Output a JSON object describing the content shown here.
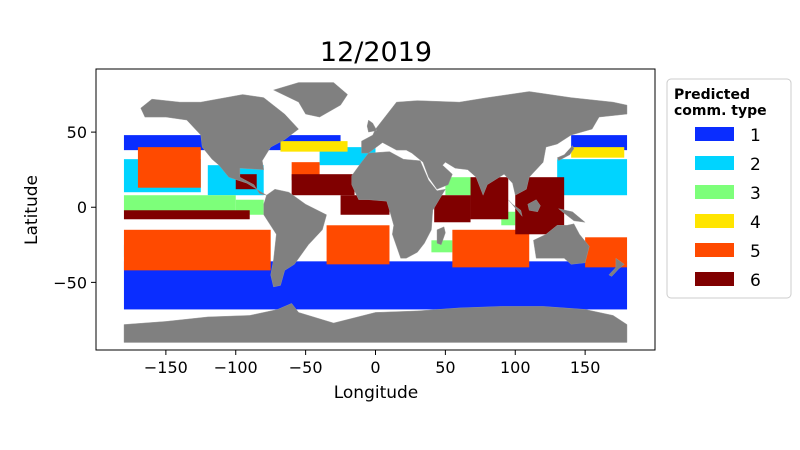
{
  "chart_data": {
    "type": "scatter",
    "title": "12/2019",
    "xlabel": "Longitude",
    "ylabel": "Latitude",
    "xlim": [
      -200,
      200
    ],
    "ylim": [
      -95,
      92
    ],
    "xticks": [
      -150,
      -100,
      -50,
      0,
      50,
      100,
      150
    ],
    "yticks": [
      -50,
      0,
      50
    ],
    "grid": false,
    "legend": {
      "title": "Predicted\ncomm. type",
      "placement": "right-outside-top",
      "entries": [
        {
          "label": "1",
          "color": "#0a2dff"
        },
        {
          "label": "2",
          "color": "#00d4ff"
        },
        {
          "label": "3",
          "color": "#7dff7a"
        },
        {
          "label": "4",
          "color": "#ffe500"
        },
        {
          "label": "5",
          "color": "#ff4a00"
        },
        {
          "label": "6",
          "color": "#800000"
        }
      ]
    },
    "land_color": "#808080",
    "bands": [
      {
        "type": "1",
        "lon": [
          -180,
          180
        ],
        "lat": [
          -68,
          -36
        ]
      },
      {
        "type": "1",
        "lon": [
          -180,
          -25
        ],
        "lat": [
          38,
          48
        ]
      },
      {
        "type": "1",
        "lon": [
          140,
          180
        ],
        "lat": [
          38,
          48
        ]
      },
      {
        "type": "2",
        "lon": [
          -180,
          -125
        ],
        "lat": [
          -33,
          -25
        ]
      },
      {
        "type": "2",
        "lon": [
          -180,
          -125
        ],
        "lat": [
          10,
          32
        ]
      },
      {
        "type": "2",
        "lon": [
          -120,
          -80
        ],
        "lat": [
          8,
          28
        ]
      },
      {
        "type": "2",
        "lon": [
          130,
          180
        ],
        "lat": [
          8,
          32
        ]
      },
      {
        "type": "2",
        "lon": [
          -40,
          0
        ],
        "lat": [
          28,
          40
        ]
      },
      {
        "type": "3",
        "lon": [
          -180,
          -100
        ],
        "lat": [
          -3,
          8
        ]
      },
      {
        "type": "3",
        "lon": [
          -100,
          -80
        ],
        "lat": [
          -5,
          5
        ]
      },
      {
        "type": "3",
        "lon": [
          50,
          68
        ],
        "lat": [
          8,
          20
        ]
      },
      {
        "type": "3",
        "lon": [
          90,
          100
        ],
        "lat": [
          -12,
          -3
        ]
      },
      {
        "type": "3",
        "lon": [
          40,
          55
        ],
        "lat": [
          -30,
          -22
        ]
      },
      {
        "type": "4",
        "lon": [
          -68,
          -20
        ],
        "lat": [
          37,
          44
        ]
      },
      {
        "type": "4",
        "lon": [
          140,
          178
        ],
        "lat": [
          33,
          40
        ]
      },
      {
        "type": "5",
        "lon": [
          -170,
          -125
        ],
        "lat": [
          13,
          40
        ]
      },
      {
        "type": "5",
        "lon": [
          -180,
          -75
        ],
        "lat": [
          -42,
          -15
        ]
      },
      {
        "type": "5",
        "lon": [
          -35,
          10
        ],
        "lat": [
          -38,
          -12
        ]
      },
      {
        "type": "5",
        "lon": [
          55,
          110
        ],
        "lat": [
          -40,
          -15
        ]
      },
      {
        "type": "5",
        "lon": [
          150,
          180
        ],
        "lat": [
          -40,
          -20
        ]
      },
      {
        "type": "5",
        "lon": [
          -60,
          -40
        ],
        "lat": [
          18,
          30
        ]
      },
      {
        "type": "6",
        "lon": [
          -180,
          -90
        ],
        "lat": [
          -8,
          -2
        ]
      },
      {
        "type": "6",
        "lon": [
          -60,
          -15
        ],
        "lat": [
          8,
          22
        ]
      },
      {
        "type": "6",
        "lon": [
          -25,
          10
        ],
        "lat": [
          -5,
          8
        ]
      },
      {
        "type": "6",
        "lon": [
          42,
          68
        ],
        "lat": [
          -10,
          8
        ]
      },
      {
        "type": "6",
        "lon": [
          68,
          95
        ],
        "lat": [
          -8,
          20
        ]
      },
      {
        "type": "6",
        "lon": [
          100,
          135
        ],
        "lat": [
          -18,
          20
        ]
      },
      {
        "type": "6",
        "lon": [
          -100,
          -85
        ],
        "lat": [
          12,
          22
        ]
      }
    ],
    "land_polygons": [
      {
        "name": "north-america",
        "points": [
          [
            -168,
            66
          ],
          [
            -160,
            72
          ],
          [
            -140,
            70
          ],
          [
            -125,
            70
          ],
          [
            -95,
            75
          ],
          [
            -80,
            73
          ],
          [
            -65,
            62
          ],
          [
            -55,
            52
          ],
          [
            -65,
            45
          ],
          [
            -75,
            40
          ],
          [
            -81,
            31
          ],
          [
            -80,
            25
          ],
          [
            -97,
            26
          ],
          [
            -97,
            20
          ],
          [
            -87,
            15
          ],
          [
            -83,
            9
          ],
          [
            -78,
            8
          ],
          [
            -92,
            16
          ],
          [
            -105,
            20
          ],
          [
            -112,
            28
          ],
          [
            -117,
            32
          ],
          [
            -124,
            40
          ],
          [
            -125,
            48
          ],
          [
            -135,
            58
          ],
          [
            -150,
            60
          ],
          [
            -165,
            60
          ],
          [
            -168,
            66
          ]
        ]
      },
      {
        "name": "greenland",
        "points": [
          [
            -73,
            78
          ],
          [
            -55,
            83
          ],
          [
            -30,
            83
          ],
          [
            -20,
            75
          ],
          [
            -25,
            68
          ],
          [
            -40,
            60
          ],
          [
            -50,
            62
          ],
          [
            -55,
            70
          ],
          [
            -73,
            78
          ]
        ]
      },
      {
        "name": "south-america",
        "points": [
          [
            -78,
            8
          ],
          [
            -72,
            12
          ],
          [
            -62,
            10
          ],
          [
            -50,
            2
          ],
          [
            -35,
            -5
          ],
          [
            -38,
            -15
          ],
          [
            -48,
            -25
          ],
          [
            -58,
            -38
          ],
          [
            -65,
            -42
          ],
          [
            -68,
            -52
          ],
          [
            -73,
            -53
          ],
          [
            -75,
            -45
          ],
          [
            -73,
            -35
          ],
          [
            -71,
            -18
          ],
          [
            -80,
            -5
          ],
          [
            -80,
            2
          ],
          [
            -78,
            8
          ]
        ]
      },
      {
        "name": "europe-asia",
        "points": [
          [
            -10,
            36
          ],
          [
            -10,
            44
          ],
          [
            -2,
            48
          ],
          [
            0,
            52
          ],
          [
            5,
            58
          ],
          [
            15,
            70
          ],
          [
            30,
            71
          ],
          [
            60,
            70
          ],
          [
            80,
            73
          ],
          [
            110,
            77
          ],
          [
            140,
            73
          ],
          [
            170,
            70
          ],
          [
            180,
            68
          ],
          [
            180,
            62
          ],
          [
            160,
            60
          ],
          [
            155,
            52
          ],
          [
            140,
            48
          ],
          [
            130,
            42
          ],
          [
            122,
            40
          ],
          [
            120,
            30
          ],
          [
            110,
            20
          ],
          [
            108,
            12
          ],
          [
            100,
            8
          ],
          [
            98,
            16
          ],
          [
            92,
            22
          ],
          [
            80,
            15
          ],
          [
            77,
            8
          ],
          [
            72,
            20
          ],
          [
            66,
            25
          ],
          [
            57,
            26
          ],
          [
            50,
            30
          ],
          [
            48,
            28
          ],
          [
            55,
            22
          ],
          [
            52,
            15
          ],
          [
            44,
            12
          ],
          [
            38,
            20
          ],
          [
            34,
            30
          ],
          [
            26,
            36
          ],
          [
            22,
            38
          ],
          [
            15,
            38
          ],
          [
            5,
            43
          ],
          [
            -5,
            36
          ],
          [
            -10,
            36
          ]
        ]
      },
      {
        "name": "africa",
        "points": [
          [
            -17,
            21
          ],
          [
            -17,
            15
          ],
          [
            -12,
            5
          ],
          [
            -5,
            5
          ],
          [
            8,
            4
          ],
          [
            10,
            -2
          ],
          [
            13,
            -12
          ],
          [
            12,
            -18
          ],
          [
            18,
            -34
          ],
          [
            22,
            -34
          ],
          [
            30,
            -30
          ],
          [
            35,
            -24
          ],
          [
            40,
            -15
          ],
          [
            41,
            -2
          ],
          [
            50,
            12
          ],
          [
            44,
            11
          ],
          [
            38,
            18
          ],
          [
            32,
            31
          ],
          [
            20,
            32
          ],
          [
            10,
            37
          ],
          [
            -5,
            36
          ],
          [
            -10,
            30
          ],
          [
            -17,
            21
          ]
        ]
      },
      {
        "name": "madagascar",
        "points": [
          [
            44,
            -15
          ],
          [
            49,
            -13
          ],
          [
            50,
            -17
          ],
          [
            47,
            -25
          ],
          [
            44,
            -24
          ],
          [
            44,
            -15
          ]
        ]
      },
      {
        "name": "australia",
        "points": [
          [
            113,
            -22
          ],
          [
            122,
            -18
          ],
          [
            130,
            -12
          ],
          [
            137,
            -12
          ],
          [
            142,
            -11
          ],
          [
            146,
            -18
          ],
          [
            153,
            -26
          ],
          [
            150,
            -37
          ],
          [
            140,
            -38
          ],
          [
            135,
            -34
          ],
          [
            125,
            -34
          ],
          [
            115,
            -34
          ],
          [
            113,
            -22
          ]
        ]
      },
      {
        "name": "indonesia-borneo",
        "points": [
          [
            109,
            2
          ],
          [
            115,
            5
          ],
          [
            118,
            1
          ],
          [
            116,
            -3
          ],
          [
            110,
            -2
          ],
          [
            109,
            2
          ]
        ]
      },
      {
        "name": "sumatra",
        "points": [
          [
            95,
            5
          ],
          [
            105,
            -6
          ],
          [
            104,
            -2
          ],
          [
            98,
            2
          ],
          [
            95,
            5
          ]
        ]
      },
      {
        "name": "new-guinea",
        "points": [
          [
            131,
            -1
          ],
          [
            141,
            -3
          ],
          [
            150,
            -10
          ],
          [
            142,
            -9
          ],
          [
            135,
            -4
          ],
          [
            131,
            -1
          ]
        ]
      },
      {
        "name": "japan",
        "points": [
          [
            130,
            33
          ],
          [
            135,
            35
          ],
          [
            141,
            41
          ],
          [
            142,
            39
          ],
          [
            139,
            35
          ],
          [
            131,
            31
          ],
          [
            130,
            33
          ]
        ]
      },
      {
        "name": "uk",
        "points": [
          [
            -5,
            50
          ],
          [
            1,
            51
          ],
          [
            -2,
            56
          ],
          [
            -5,
            58
          ],
          [
            -6,
            54
          ],
          [
            -5,
            50
          ]
        ]
      },
      {
        "name": "new-zealand",
        "points": [
          [
            172,
            -34
          ],
          [
            178,
            -38
          ],
          [
            174,
            -41
          ],
          [
            169,
            -46
          ],
          [
            167,
            -45
          ],
          [
            172,
            -40
          ],
          [
            172,
            -34
          ]
        ]
      },
      {
        "name": "antarctica",
        "points": [
          [
            -180,
            -78
          ],
          [
            -150,
            -76
          ],
          [
            -120,
            -73
          ],
          [
            -90,
            -72
          ],
          [
            -70,
            -68
          ],
          [
            -60,
            -64
          ],
          [
            -55,
            -70
          ],
          [
            -30,
            -77
          ],
          [
            0,
            -70
          ],
          [
            30,
            -69
          ],
          [
            60,
            -67
          ],
          [
            90,
            -66
          ],
          [
            120,
            -66
          ],
          [
            150,
            -68
          ],
          [
            170,
            -72
          ],
          [
            180,
            -78
          ],
          [
            180,
            -90
          ],
          [
            -180,
            -90
          ],
          [
            -180,
            -78
          ]
        ]
      }
    ]
  }
}
